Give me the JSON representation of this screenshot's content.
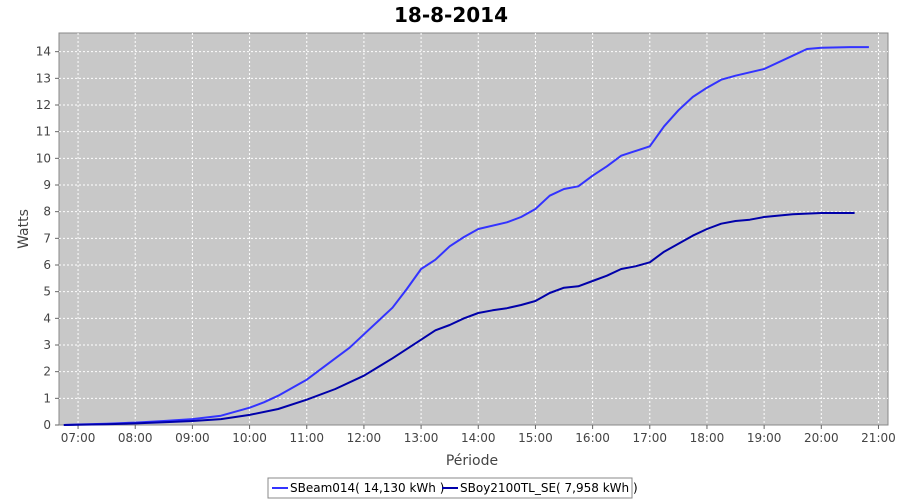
{
  "chart_data": {
    "type": "line",
    "title": "18-8-2014",
    "xlabel": "Période",
    "ylabel": "Watts",
    "xlim": [
      "06:40",
      "21:10"
    ],
    "ylim": [
      0,
      14.7
    ],
    "x_ticks": [
      "07:00",
      "08:00",
      "09:00",
      "10:00",
      "11:00",
      "12:00",
      "13:00",
      "14:00",
      "15:00",
      "16:00",
      "17:00",
      "18:00",
      "19:00",
      "20:00",
      "21:00"
    ],
    "y_ticks": [
      0,
      1,
      2,
      3,
      4,
      5,
      6,
      7,
      8,
      9,
      10,
      11,
      12,
      13,
      14
    ],
    "grid": true,
    "plot_background": "#c8c8c8",
    "legend_position": "bottom-center",
    "series": [
      {
        "name": "SBeam014( 14,130 kWh )",
        "color": "#3333ff",
        "x": [
          "06:45",
          "07:00",
          "07:30",
          "08:00",
          "08:30",
          "09:00",
          "09:30",
          "10:00",
          "10:15",
          "10:30",
          "11:00",
          "11:30",
          "11:45",
          "12:00",
          "12:30",
          "12:45",
          "13:00",
          "13:15",
          "13:30",
          "13:45",
          "14:00",
          "14:30",
          "14:45",
          "15:00",
          "15:15",
          "15:30",
          "15:45",
          "16:00",
          "16:15",
          "16:30",
          "17:00",
          "17:15",
          "17:30",
          "17:45",
          "18:00",
          "18:15",
          "18:30",
          "19:00",
          "19:30",
          "19:45",
          "20:00",
          "20:30",
          "20:50"
        ],
        "values": [
          0,
          0.02,
          0.05,
          0.09,
          0.15,
          0.22,
          0.35,
          0.65,
          0.85,
          1.1,
          1.7,
          2.5,
          2.9,
          3.4,
          4.4,
          5.1,
          5.85,
          6.2,
          6.7,
          7.05,
          7.35,
          7.6,
          7.8,
          8.1,
          8.6,
          8.85,
          8.95,
          9.35,
          9.7,
          10.1,
          10.45,
          11.2,
          11.8,
          12.3,
          12.65,
          12.95,
          13.1,
          13.35,
          13.85,
          14.1,
          14.15,
          14.17,
          14.17
        ]
      },
      {
        "name": "SBoy2100TL_SE( 7,958 kWh )",
        "color": "#0000aa",
        "x": [
          "06:45",
          "07:00",
          "07:30",
          "08:00",
          "08:30",
          "09:00",
          "09:30",
          "10:00",
          "10:30",
          "11:00",
          "11:30",
          "12:00",
          "12:30",
          "13:00",
          "13:15",
          "13:30",
          "13:45",
          "14:00",
          "14:15",
          "14:30",
          "14:45",
          "15:00",
          "15:15",
          "15:30",
          "15:45",
          "16:00",
          "16:15",
          "16:30",
          "16:45",
          "17:00",
          "17:15",
          "17:30",
          "17:45",
          "18:00",
          "18:15",
          "18:30",
          "18:45",
          "19:00",
          "19:30",
          "20:00",
          "20:35"
        ],
        "values": [
          0,
          0.01,
          0.03,
          0.06,
          0.1,
          0.15,
          0.22,
          0.38,
          0.6,
          0.95,
          1.35,
          1.85,
          2.5,
          3.2,
          3.55,
          3.75,
          4.0,
          4.2,
          4.3,
          4.38,
          4.5,
          4.65,
          4.95,
          5.15,
          5.2,
          5.4,
          5.6,
          5.85,
          5.95,
          6.1,
          6.5,
          6.8,
          7.1,
          7.35,
          7.55,
          7.65,
          7.7,
          7.8,
          7.9,
          7.95,
          7.95
        ]
      }
    ]
  }
}
